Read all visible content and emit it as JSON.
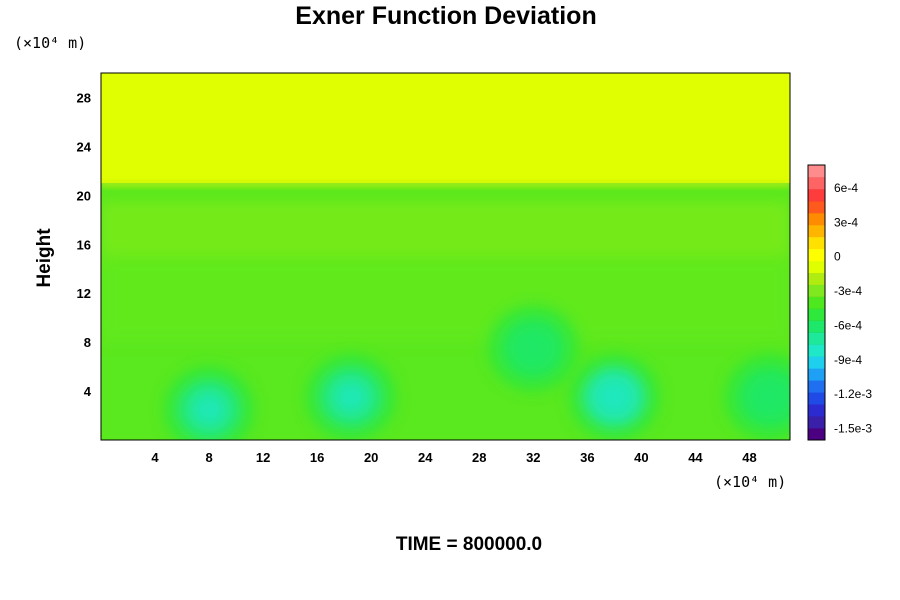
{
  "chart_data": {
    "type": "heatmap",
    "title": "Exner Function Deviation",
    "ylabel": "Height",
    "x_unit_label": "(×10⁴ m)",
    "y_unit_label": "(×10⁴ m)",
    "footer": "TIME = 800000.0",
    "xlim": [
      0,
      51
    ],
    "ylim": [
      0,
      30
    ],
    "x_ticks": [
      4,
      8,
      12,
      16,
      20,
      24,
      28,
      32,
      36,
      40,
      44,
      48
    ],
    "y_ticks": [
      4,
      8,
      12,
      16,
      20,
      24,
      28
    ],
    "colorbar": {
      "vmin": -0.0016,
      "vmax": 0.0008,
      "tick_values": [
        0.0006,
        0.0003,
        0,
        -0.0003,
        -0.0006,
        -0.0009,
        -0.0012,
        -0.0015
      ],
      "tick_labels": [
        "6e-4",
        "3e-4",
        "0",
        "-3e-4",
        "-6e-4",
        "-9e-4",
        "-1.2e-3",
        "-1.5e-3"
      ],
      "colors": [
        "#4b0082",
        "#3a1fa8",
        "#2b2bd0",
        "#1f4ae6",
        "#1f6ff0",
        "#1ea0f5",
        "#1ecfee",
        "#1ee8c8",
        "#1ee89a",
        "#1ee86a",
        "#2ee83c",
        "#4ee81e",
        "#7fe81e",
        "#b0ec10",
        "#e0ff00",
        "#ffff00",
        "#ffe000",
        "#ffb400",
        "#ff8c00",
        "#ff5a1e",
        "#ff3c3c",
        "#ff6464",
        "#ff8c8c"
      ]
    },
    "field_description": {
      "upper_layer_value": -0.0001,
      "boundary_height": 21,
      "blobs": [
        {
          "x": 8,
          "y": 2.5,
          "value": -0.00078
        },
        {
          "x": 18.5,
          "y": 3.5,
          "value": -0.00082
        },
        {
          "x": 38,
          "y": 3.5,
          "value": -0.00086
        },
        {
          "x": 32,
          "y": 7.5,
          "value": -0.0006
        },
        {
          "x": 49.5,
          "y": 3.5,
          "value": -0.0006
        }
      ]
    }
  }
}
